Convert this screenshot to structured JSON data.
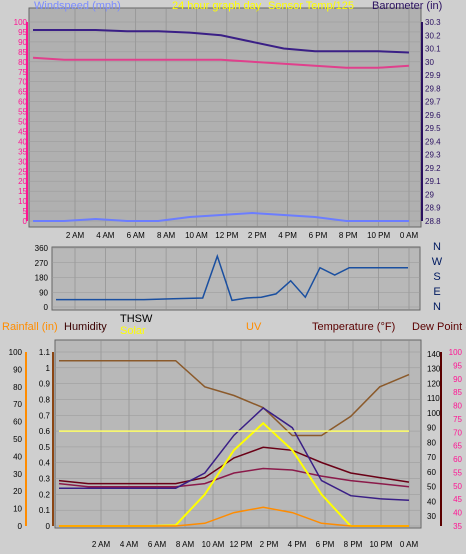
{
  "panel1": {
    "labels": {
      "windspeed": "Windspeed (mph)",
      "title": "24 hour graph day",
      "sensor": "Sensor Temp/125",
      "barometer": "Barometer (in)"
    },
    "colors": {
      "windspeed": "#7b8cff",
      "title": "#ffff00",
      "sensor": "#ffff00",
      "barometer": "#2a1060"
    },
    "left_ticks": [
      "0",
      "5",
      "10",
      "15",
      "20",
      "25",
      "30",
      "35",
      "40",
      "45",
      "50",
      "55",
      "60",
      "65",
      "70",
      "75",
      "80",
      "85",
      "90",
      "95",
      "100"
    ],
    "right_ticks": [
      "28.8",
      "28.9",
      "29",
      "29.1",
      "29.2",
      "29.3",
      "29.4",
      "29.5",
      "29.6",
      "29.7",
      "29.8",
      "29.9",
      "30",
      "30.1",
      "30.2",
      "30.3"
    ],
    "x_ticks": [
      "2 AM",
      "4 AM",
      "6 AM",
      "8 AM",
      "10 AM",
      "12 PM",
      "2 PM",
      "4 PM",
      "6 PM",
      "8 PM",
      "10 PM",
      "0 AM"
    ]
  },
  "panel2": {
    "left_ticks": [
      "0",
      "90",
      "180",
      "270",
      "360"
    ],
    "compass": [
      "N",
      "W",
      "S",
      "E",
      "N"
    ]
  },
  "panel3": {
    "labels": {
      "rainfall": "Rainfall (in)",
      "humidity": "Humidity",
      "thsw": "THSW",
      "solar": "Solar",
      "uv": "UV",
      "temperature": "Temperature (°F)",
      "dewpoint": "Dew Point (°F)"
    },
    "colors": {
      "rainfall": "#ff8c00",
      "humidity": "#3a0000",
      "thsw": "#000000",
      "solar": "#ffff00",
      "uv": "#ff8c00",
      "temperature": "#5a0000",
      "dewpoint": "#5a0000"
    },
    "axis1_ticks": [
      "0",
      "10",
      "20",
      "30",
      "40",
      "50",
      "60",
      "70",
      "80",
      "90",
      "100"
    ],
    "axis2_ticks": [
      "0",
      "0.1",
      "0.2",
      "0.3",
      "0.4",
      "0.5",
      "0.6",
      "0.7",
      "0.8",
      "0.9",
      "1",
      "1.1"
    ],
    "right_ticks": [
      "30",
      "40",
      "50",
      "60",
      "70",
      "80",
      "90",
      "100",
      "110",
      "120",
      "130",
      "140"
    ],
    "uv_ticks": [
      "35",
      "40",
      "45",
      "50",
      "55",
      "60",
      "65",
      "70",
      "75",
      "80",
      "85",
      "90",
      "95",
      "100"
    ],
    "x_ticks": [
      "2 AM",
      "4 AM",
      "6 AM",
      "8 AM",
      "10 AM",
      "12 PM",
      "2 PM",
      "4 PM",
      "6 PM",
      "8 PM",
      "10 PM",
      "0 AM"
    ]
  },
  "chart_data": [
    {
      "type": "line",
      "x_hours": [
        0,
        2,
        4,
        6,
        8,
        10,
        12,
        14,
        16,
        18,
        20,
        22,
        24
      ],
      "series": [
        {
          "name": "Barometer (in)",
          "values": [
            30.24,
            30.24,
            30.24,
            30.23,
            30.23,
            30.22,
            30.2,
            30.15,
            30.1,
            30.08,
            30.08,
            30.08,
            30.07
          ],
          "ylim": [
            28.8,
            30.3
          ]
        },
        {
          "name": "Sensor Temp/125",
          "values": [
            82,
            81,
            81,
            81,
            81,
            81,
            81,
            80,
            79,
            78,
            77,
            77,
            78
          ],
          "ylim": [
            0,
            100
          ]
        },
        {
          "name": "Windspeed (mph)",
          "values": [
            0,
            0,
            1,
            0,
            0,
            2,
            3,
            4,
            3,
            2,
            0,
            0,
            0
          ],
          "ylim": [
            0,
            100
          ]
        }
      ]
    },
    {
      "type": "line",
      "ylim": [
        0,
        360
      ],
      "x_hours": [
        0,
        2,
        4,
        6,
        8,
        10,
        11,
        12,
        13,
        14,
        15,
        16,
        17,
        18,
        19,
        20,
        22,
        24
      ],
      "series": [
        {
          "name": "wind direction",
          "values": [
            45,
            45,
            45,
            45,
            50,
            55,
            310,
            40,
            55,
            60,
            80,
            160,
            60,
            240,
            195,
            240,
            240,
            240
          ]
        }
      ]
    },
    {
      "type": "line",
      "x_hours": [
        0,
        2,
        4,
        6,
        8,
        10,
        12,
        14,
        16,
        18,
        20,
        22,
        24
      ],
      "series": [
        {
          "name": "Humidity",
          "values": [
            95,
            95,
            95,
            95,
            95,
            80,
            75,
            68,
            52,
            52,
            63,
            80,
            87
          ],
          "ylim": [
            0,
            100
          ]
        },
        {
          "name": "Temperature (°F)",
          "values": [
            60,
            58,
            58,
            58,
            58,
            62,
            75,
            82,
            80,
            72,
            65,
            62,
            59
          ],
          "ylim": [
            30,
            145
          ]
        },
        {
          "name": "Dew Point (°F)",
          "values": [
            58,
            56,
            56,
            56,
            56,
            58,
            65,
            68,
            67,
            63,
            60,
            58,
            56
          ],
          "ylim": [
            30,
            145
          ]
        },
        {
          "name": "THSW",
          "values": [
            55,
            55,
            55,
            55,
            55,
            65,
            90,
            108,
            95,
            60,
            50,
            48,
            47
          ],
          "ylim": [
            30,
            145
          ]
        },
        {
          "name": "Solar",
          "values": [
            0,
            0,
            0,
            0,
            5,
            200,
            480,
            650,
            480,
            200,
            0,
            0,
            0
          ],
          "ylim": [
            0,
            1100
          ]
        },
        {
          "name": "UV",
          "values": [
            35,
            35,
            35,
            35,
            35,
            36,
            40,
            42,
            40,
            36,
            35,
            35,
            35
          ],
          "ylim": [
            35,
            100
          ]
        },
        {
          "name": "Rainfall (in)",
          "values": [
            0.6,
            0.6,
            0.6,
            0.6,
            0.6,
            0.6,
            0.6,
            0.6,
            0.6,
            0.6,
            0.6,
            0.6,
            0.6
          ],
          "ylim": [
            0,
            1.1
          ]
        }
      ]
    }
  ]
}
